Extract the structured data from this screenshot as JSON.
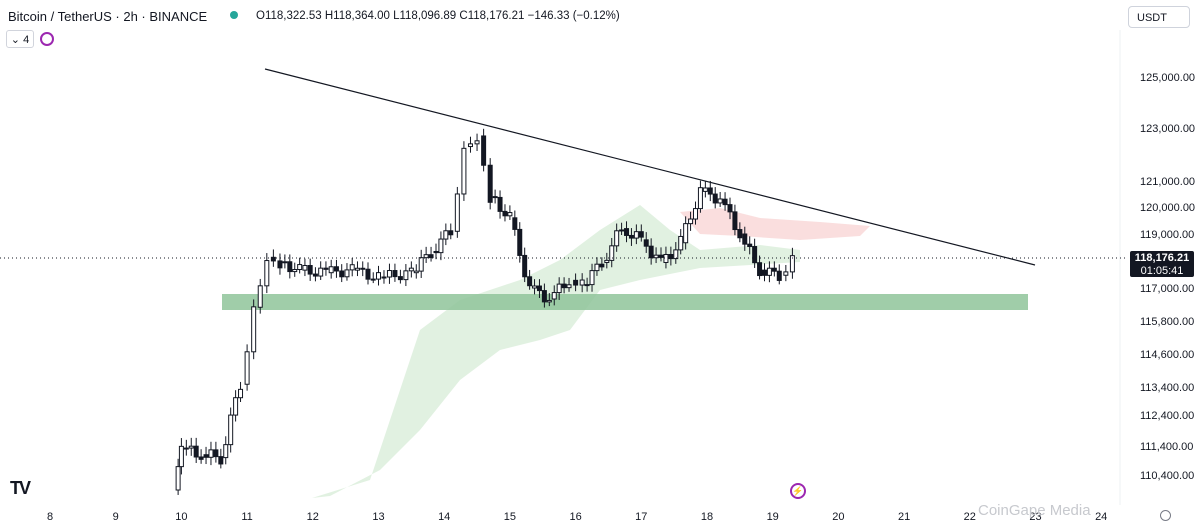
{
  "header": {
    "symbol_title": "Bitcoin / TetherUS · 2h · BINANCE",
    "ohlc": {
      "o_label": "O",
      "o": "118,322.53",
      "h_label": "H",
      "h": "118,364.00",
      "l_label": "L",
      "l": "118,096.89",
      "c_label": "C",
      "c": "118,176.21",
      "change": "−146.33 (−0.12%)"
    },
    "currency_button": "USDT",
    "indicator_count": "4"
  },
  "price_badge": {
    "price": "118,176.21",
    "countdown": "01:05:41"
  },
  "watermark": "CoinGape Media",
  "colors": {
    "up": "#131722",
    "down": "#131722",
    "support_zone": "#8fc49a",
    "cloud_bull": "#c8e6c9",
    "cloud_bear": "#f8d0d0",
    "trendline": "#131722"
  },
  "chart_data": {
    "type": "candlestick",
    "timeframe": "2h",
    "y_ticks": [
      "125,000.00",
      "123,000.00",
      "121,000.00",
      "120,000.00",
      "119,000.00",
      "117,000.00",
      "115,800.00",
      "114,600.00",
      "113,400.00",
      "112,400.00",
      "111,400.00",
      "110,400.00"
    ],
    "x_ticks": [
      "8",
      "9",
      "10",
      "11",
      "12",
      "13",
      "14",
      "15",
      "16",
      "17",
      "18",
      "19",
      "20",
      "21",
      "22",
      "23",
      "24"
    ],
    "support_zone": {
      "low": 116200,
      "high": 116800,
      "x_start": "10.7",
      "x_end": "22.8"
    },
    "trendline": {
      "x1": "11.3",
      "y1": 125200,
      "x2": "22.9",
      "y2": 118200
    },
    "current_price": 118176.21,
    "close_series": [
      {
        "x": "9.9",
        "y": 109700
      },
      {
        "x": "10.0",
        "y": 111300
      },
      {
        "x": "10.3",
        "y": 111100
      },
      {
        "x": "10.6",
        "y": 111000
      },
      {
        "x": "10.9",
        "y": 113500
      },
      {
        "x": "11.1",
        "y": 116300
      },
      {
        "x": "11.3",
        "y": 118200
      },
      {
        "x": "11.5",
        "y": 118000
      },
      {
        "x": "11.8",
        "y": 117700
      },
      {
        "x": "12.2",
        "y": 117600
      },
      {
        "x": "12.6",
        "y": 117700
      },
      {
        "x": "13.0",
        "y": 117400
      },
      {
        "x": "13.5",
        "y": 117600
      },
      {
        "x": "13.8",
        "y": 118400
      },
      {
        "x": "14.1",
        "y": 119100
      },
      {
        "x": "14.3",
        "y": 122300
      },
      {
        "x": "14.5",
        "y": 122700
      },
      {
        "x": "14.7",
        "y": 120400
      },
      {
        "x": "15.0",
        "y": 119600
      },
      {
        "x": "15.3",
        "y": 117000
      },
      {
        "x": "15.6",
        "y": 116600
      },
      {
        "x": "15.9",
        "y": 117300
      },
      {
        "x": "16.1",
        "y": 117100
      },
      {
        "x": "16.4",
        "y": 118000
      },
      {
        "x": "16.7",
        "y": 119200
      },
      {
        "x": "17.0",
        "y": 118800
      },
      {
        "x": "17.3",
        "y": 118000
      },
      {
        "x": "17.6",
        "y": 118700
      },
      {
        "x": "17.9",
        "y": 120600
      },
      {
        "x": "18.2",
        "y": 120300
      },
      {
        "x": "18.5",
        "y": 119000
      },
      {
        "x": "18.8",
        "y": 117700
      },
      {
        "x": "19.1",
        "y": 117500
      },
      {
        "x": "19.3",
        "y": 118200
      }
    ]
  }
}
